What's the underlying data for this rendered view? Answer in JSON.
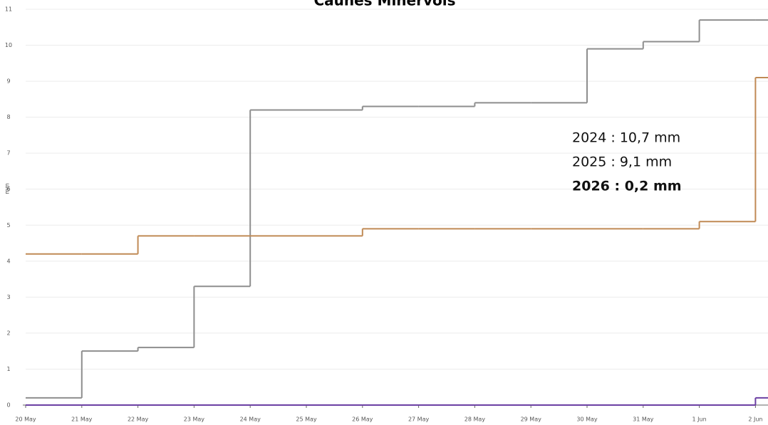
{
  "chart_data": {
    "type": "step",
    "title": "Caunes Minervois",
    "y_label": "mm",
    "categories": [
      "20 May",
      "21 May",
      "22 May",
      "23 May",
      "24 May",
      "25 May",
      "26 May",
      "27 May",
      "28 May",
      "29 May",
      "30 May",
      "31 May",
      "1 Jun",
      "2 Jun"
    ],
    "series": [
      {
        "name": "2024",
        "color": "#8e8e8e",
        "values": [
          0.2,
          1.5,
          1.6,
          3.3,
          8.2,
          8.2,
          8.3,
          8.3,
          8.4,
          8.4,
          9.9,
          10.1,
          10.7,
          10.7
        ]
      },
      {
        "name": "2025",
        "color": "#c08a55",
        "values": [
          4.2,
          4.2,
          4.7,
          4.7,
          4.7,
          4.7,
          4.9,
          4.9,
          4.9,
          4.9,
          4.9,
          4.9,
          5.1,
          9.1
        ]
      },
      {
        "name": "2026",
        "color": "#6b3fa3",
        "values": [
          0,
          0,
          0,
          0,
          0,
          0,
          0,
          0,
          0,
          0,
          0,
          0,
          0,
          0.2
        ]
      }
    ],
    "ylim": [
      0,
      11
    ],
    "yticks": [
      0,
      1,
      2,
      3,
      4,
      5,
      6,
      7,
      8,
      9,
      10,
      11
    ],
    "grid": true,
    "annotations": [
      {
        "text": "2024 : 10,7 mm",
        "bold": false
      },
      {
        "text": "2025 : 9,1 mm",
        "bold": false
      },
      {
        "text": "2026 : 0,2 mm",
        "bold": true
      }
    ]
  }
}
